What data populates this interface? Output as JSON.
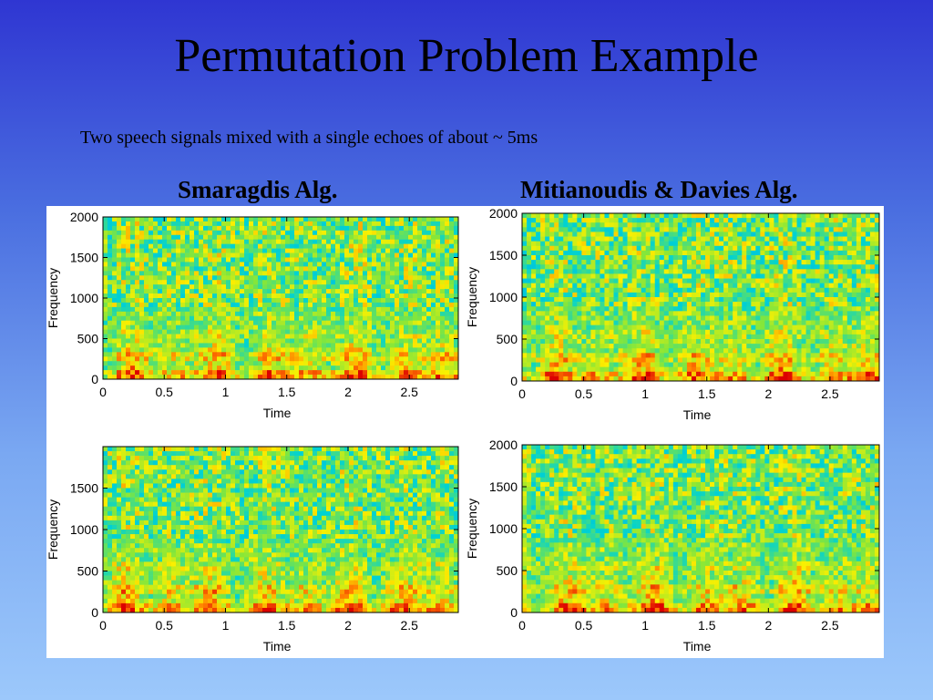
{
  "slide": {
    "title": "Permutation Problem Example",
    "subtitle": "Two speech signals mixed with a single echoes of about ~ 5ms",
    "left_heading": "Smaragdis Alg.",
    "right_heading": "Mitianoudis & Davies Alg."
  },
  "chart_data": [
    {
      "type": "heatmap",
      "position": "top-left",
      "xlabel": "Time",
      "ylabel": "Frequency",
      "xlim": [
        0,
        2.9
      ],
      "ylim": [
        0,
        2000
      ],
      "xticks": [
        "0",
        "0.5",
        "1",
        "1.5",
        "2",
        "2.5"
      ],
      "yticks": [
        "0",
        "500",
        "1000",
        "1500",
        "2000"
      ]
    },
    {
      "type": "heatmap",
      "position": "top-right",
      "xlabel": "Time",
      "ylabel": "Frequency",
      "xlim": [
        0,
        2.9
      ],
      "ylim": [
        0,
        2000
      ],
      "xticks": [
        "0",
        "0.5",
        "1",
        "1.5",
        "2",
        "2.5"
      ],
      "yticks": [
        "0",
        "500",
        "1000",
        "1500",
        "2000"
      ]
    },
    {
      "type": "heatmap",
      "position": "bottom-left",
      "xlabel": "Time",
      "ylabel": "Frequency",
      "xlim": [
        0,
        2.9
      ],
      "ylim": [
        0,
        2000
      ],
      "xticks": [
        "0",
        "0.5",
        "1",
        "1.5",
        "2",
        "2.5"
      ],
      "yticks": [
        "0",
        "500",
        "1000",
        "1500"
      ]
    },
    {
      "type": "heatmap",
      "position": "bottom-right",
      "xlabel": "Time",
      "ylabel": "Frequency",
      "xlim": [
        0,
        2.9
      ],
      "ylim": [
        0,
        2000
      ],
      "xticks": [
        "0",
        "0.5",
        "1",
        "1.5",
        "2",
        "2.5"
      ],
      "yticks": [
        "0",
        "500",
        "1000",
        "1500",
        "2000"
      ]
    }
  ]
}
